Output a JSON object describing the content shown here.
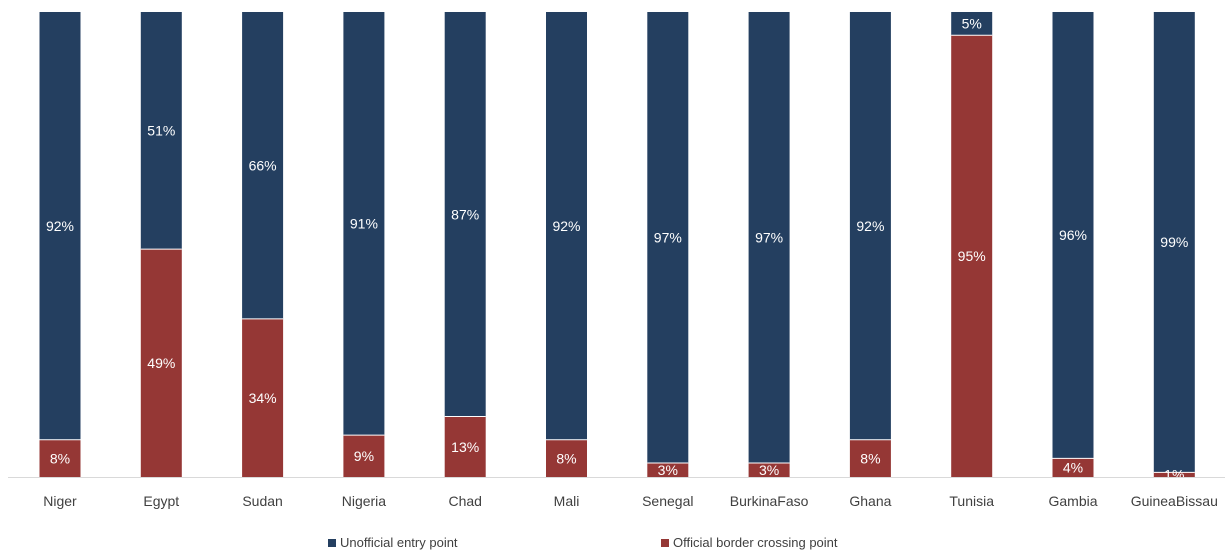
{
  "chart_data": {
    "type": "bar",
    "stacked": true,
    "percent_stacked": true,
    "categories": [
      "Niger",
      "Egypt",
      "Sudan",
      "Nigeria",
      "Chad",
      "Mali",
      "Senegal",
      "BurkinaFaso",
      "Ghana",
      "Tunisia",
      "Gambia",
      "GuineaBissau"
    ],
    "series": [
      {
        "name": "Official border crossing point",
        "color": "#953735",
        "values": [
          8,
          49,
          34,
          9,
          13,
          8,
          3,
          3,
          8,
          95,
          4,
          1
        ],
        "labels": [
          "8%",
          "49%",
          "34%",
          "9%",
          "13%",
          "8%",
          "3%",
          "3%",
          "8%",
          "95%",
          "4%",
          "1%"
        ]
      },
      {
        "name": "Unofficial entry point",
        "color": "#243F60",
        "values": [
          92,
          51,
          66,
          91,
          87,
          92,
          97,
          97,
          92,
          5,
          96,
          99
        ],
        "labels": [
          "92%",
          "51%",
          "66%",
          "91%",
          "87%",
          "92%",
          "97%",
          "97%",
          "92%",
          "5%",
          "96%",
          "99%"
        ]
      }
    ],
    "legend": {
      "position": "bottom",
      "order": [
        "Unofficial entry point",
        "Official border crossing point"
      ]
    },
    "ylim": [
      0,
      100
    ],
    "grid": false
  }
}
